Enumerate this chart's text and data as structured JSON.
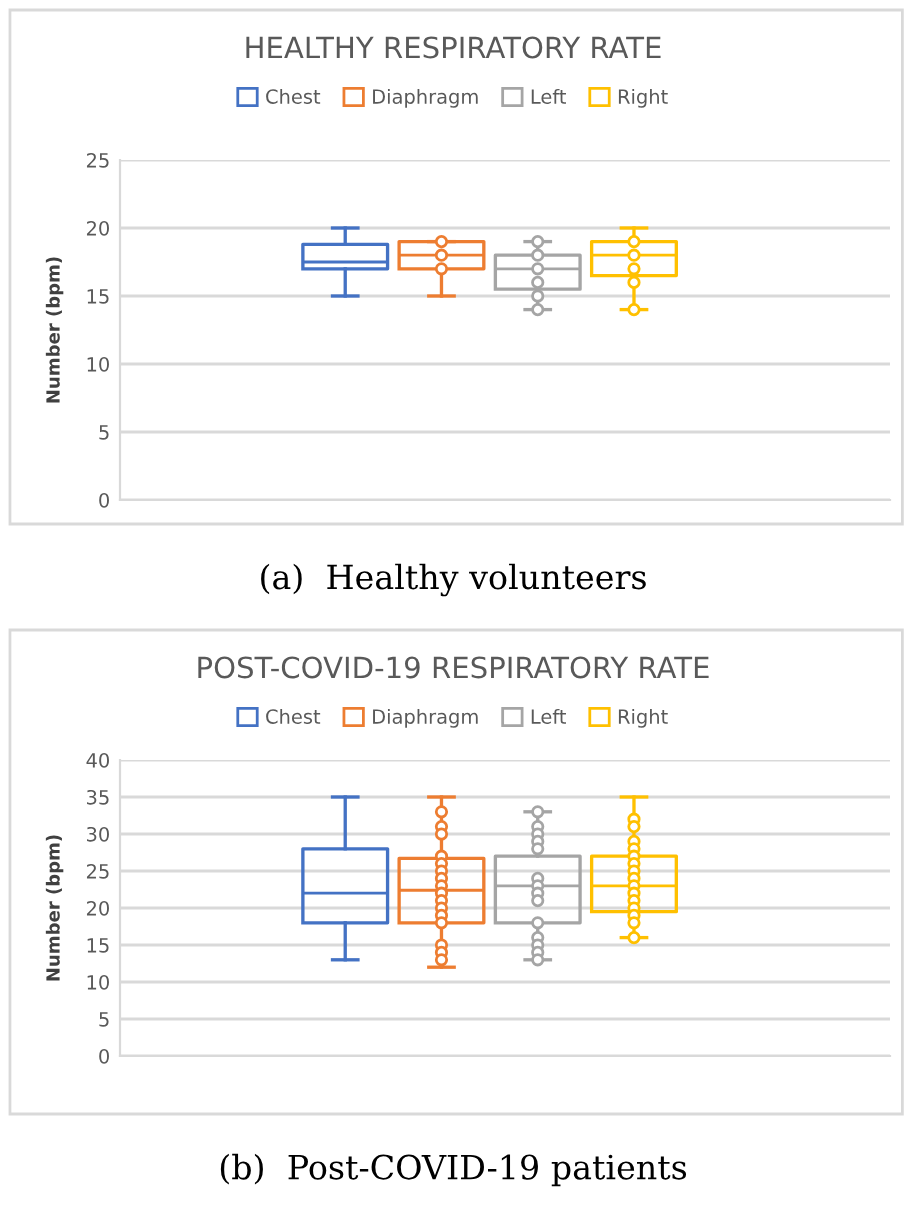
{
  "chart_data": [
    {
      "type": "box",
      "title": "HEALTHY RESPIRATORY RATE",
      "ylabel": "Number (bpm)",
      "categories": [
        null
      ],
      "ylim": [
        0,
        25
      ],
      "yticks": [
        0,
        5,
        10,
        15,
        20,
        25
      ],
      "grid": "y",
      "legend": "top",
      "tick_labels": "y",
      "annotations": [
        "(a)  Healthy volunteers"
      ],
      "series": [
        {
          "name": "Chest",
          "color": "#4472c4",
          "boxes": [
            {
              "low": 15,
              "q1": 17,
              "median": 17.5,
              "q3": 18.8,
              "high": 20
            }
          ]
        },
        {
          "name": "Diaphragm",
          "color": "#ed7d31",
          "boxes": [
            {
              "low": 15,
              "q1": 17,
              "median": 18,
              "q3": 19,
              "high": 19,
              "outliers": [
                19,
                18,
                17
              ]
            }
          ]
        },
        {
          "name": "Left",
          "color": "#a5a5a5",
          "boxes": [
            {
              "low": 14,
              "q1": 15.5,
              "median": 17,
              "q3": 18,
              "high": 19,
              "outliers": [
                19,
                18,
                17,
                16,
                15,
                14
              ]
            }
          ]
        },
        {
          "name": "Right",
          "color": "#ffc000",
          "boxes": [
            {
              "low": 14,
              "q1": 16.5,
              "median": 18,
              "q3": 19,
              "high": 20,
              "outliers": [
                19,
                18,
                17,
                16,
                14
              ]
            }
          ]
        }
      ]
    },
    {
      "type": "box",
      "title": "POST-COVID-19 RESPIRATORY RATE",
      "ylabel": "Number (bpm)",
      "categories": [
        null
      ],
      "ylim": [
        0,
        40
      ],
      "yticks": [
        0,
        5,
        10,
        15,
        20,
        25,
        30,
        35,
        40
      ],
      "grid": "y",
      "legend": "top",
      "tick_labels": "y",
      "annotations": [
        "(b)  Post-COVID-19 patients"
      ],
      "series": [
        {
          "name": "Chest",
          "color": "#4472c4",
          "boxes": [
            {
              "low": 13,
              "q1": 18,
              "median": 22,
              "q3": 28,
              "high": 35
            }
          ]
        },
        {
          "name": "Diaphragm",
          "color": "#ed7d31",
          "boxes": [
            {
              "low": 12,
              "q1": 18,
              "median": 22.4,
              "q3": 26.7,
              "high": 35,
              "outliers": [
                33,
                31,
                30,
                27,
                26,
                25,
                24,
                23,
                22,
                21,
                20,
                19,
                18,
                15,
                14,
                13
              ]
            }
          ]
        },
        {
          "name": "Left",
          "color": "#a5a5a5",
          "boxes": [
            {
              "low": 13,
              "q1": 18,
              "median": 23,
              "q3": 27,
              "high": 33,
              "outliers": [
                33,
                31,
                30,
                29,
                28,
                24,
                23,
                22,
                21,
                18,
                16,
                15,
                14,
                13
              ]
            }
          ]
        },
        {
          "name": "Right",
          "color": "#ffc000",
          "boxes": [
            {
              "low": 16,
              "q1": 19.5,
              "median": 23,
              "q3": 27,
              "high": 35,
              "outliers": [
                32,
                31,
                29,
                28,
                27,
                26,
                25,
                24,
                23,
                22,
                21,
                20,
                19,
                18,
                16
              ]
            }
          ]
        }
      ]
    }
  ]
}
